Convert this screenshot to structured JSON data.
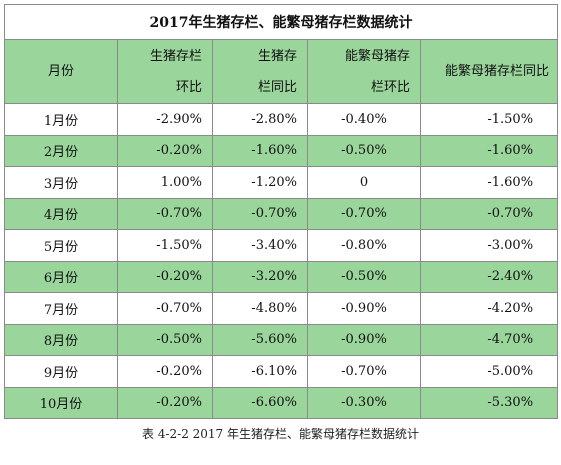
{
  "table": {
    "title": "2017年生猪存栏、能繁母猪存栏数据统计",
    "headers": [
      [
        "月份"
      ],
      [
        "生猪存栏",
        "环比"
      ],
      [
        "生猪存",
        "栏同比"
      ],
      [
        "能繁母猪存",
        "栏环比"
      ],
      [
        "能繁母猪存栏同比"
      ]
    ],
    "rows": [
      [
        "1月份",
        "-2.90%",
        "-2.80%",
        "-0.40%",
        "-1.50%"
      ],
      [
        "2月份",
        "-0.20%",
        "-1.60%",
        "-0.50%",
        "-1.60%"
      ],
      [
        "3月份",
        "1.00%",
        "-1.20%",
        "0",
        "-1.60%"
      ],
      [
        "4月份",
        "-0.70%",
        "-0.70%",
        "-0.70%",
        "-0.70%"
      ],
      [
        "5月份",
        "-1.50%",
        "-3.40%",
        "-0.80%",
        "-3.00%"
      ],
      [
        "6月份",
        "-0.20%",
        "-3.20%",
        "-0.50%",
        "-2.40%"
      ],
      [
        "7月份",
        "-0.70%",
        "-4.80%",
        "-0.90%",
        "-4.20%"
      ],
      [
        "8月份",
        "-0.50%",
        "-5.60%",
        "-0.90%",
        "-4.70%"
      ],
      [
        "9月份",
        "-0.20%",
        "-6.10%",
        "-0.70%",
        "-5.00%"
      ],
      [
        "10月份",
        "-0.20%",
        "-6.60%",
        "-0.30%",
        "-5.30%"
      ]
    ]
  },
  "caption": "表 4-2-2 2017 年生猪存栏、能繁母猪存栏数据统计",
  "colors": {
    "row_green": "#9ad59c",
    "row_white": "#ffffff",
    "border": "#8a8a8a"
  }
}
